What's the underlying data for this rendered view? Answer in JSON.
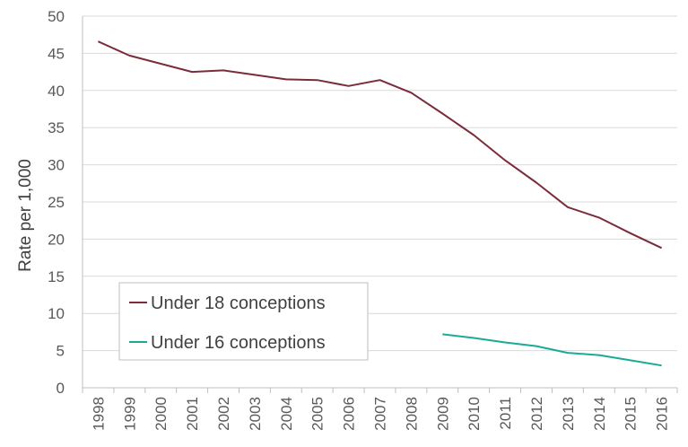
{
  "chart_data": {
    "type": "line",
    "title": "",
    "xlabel": "",
    "ylabel": "Rate per 1,000",
    "x": [
      "1998",
      "1999",
      "2000",
      "2001",
      "2002",
      "2003",
      "2004",
      "2005",
      "2006",
      "2007",
      "2008",
      "2009",
      "2010",
      "2011",
      "2012",
      "2013",
      "2014",
      "2015",
      "2016"
    ],
    "ylim": [
      0,
      50
    ],
    "yticks": [
      "0",
      "5",
      "10",
      "15",
      "20",
      "25",
      "30",
      "35",
      "40",
      "45",
      "50"
    ],
    "grid": true,
    "legend_position": "bottom-left",
    "series": [
      {
        "name": "Under 18 conceptions",
        "color": "#7b2c3b",
        "values": [
          46.6,
          44.7,
          43.6,
          42.5,
          42.7,
          42.1,
          41.5,
          41.4,
          40.6,
          41.4,
          39.7,
          36.9,
          34.0,
          30.6,
          27.6,
          24.3,
          22.9,
          20.8,
          18.8
        ]
      },
      {
        "name": "Under 16 conceptions",
        "color": "#1aab97",
        "values": [
          null,
          null,
          null,
          null,
          null,
          null,
          null,
          null,
          null,
          null,
          null,
          7.2,
          6.7,
          6.1,
          5.6,
          4.7,
          4.4,
          3.7,
          3.0
        ]
      }
    ]
  }
}
